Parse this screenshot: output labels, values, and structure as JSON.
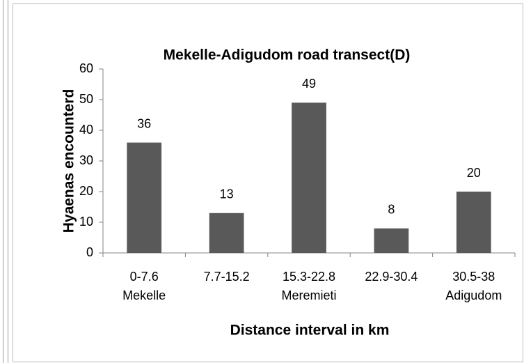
{
  "chart_data": {
    "type": "bar",
    "title": "Mekelle-Adigudom road transect(D)",
    "x_label": "Distance interval in km",
    "y_label": "Hyaenas encounterd",
    "categories": [
      [
        "0-7.6",
        "Mekelle"
      ],
      [
        "7.7-15.2"
      ],
      [
        "15.3-22.8",
        "Meremieti"
      ],
      [
        "22.9-30.4"
      ],
      [
        "30.5-38",
        "Adigudom"
      ]
    ],
    "values": [
      36,
      13,
      49,
      8,
      20
    ],
    "color": "#595959",
    "ylim": [
      0,
      60
    ],
    "yticks": [
      0,
      10,
      20,
      30,
      40,
      50,
      60
    ],
    "grid": false
  }
}
